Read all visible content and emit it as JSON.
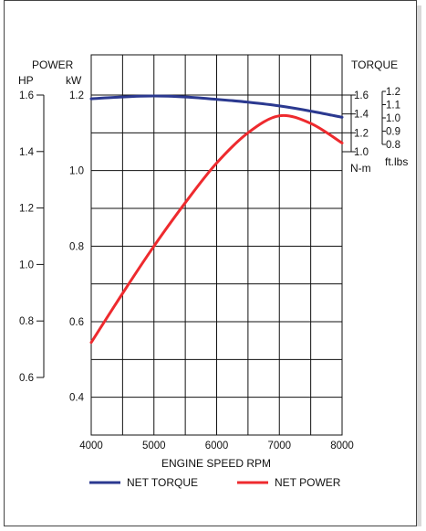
{
  "chart_data": {
    "type": "line",
    "title": "",
    "xlabel": "ENGINE SPEED RPM",
    "x_ticks": [
      "4000",
      "5000",
      "6000",
      "7000",
      "8000"
    ],
    "xlim": [
      4000,
      8000
    ],
    "grid": true,
    "legend_position": "bottom",
    "left_axis_title": "POWER",
    "hp_axis": {
      "unit": "HP",
      "ticks": [
        "1.6",
        "1.4",
        "1.2",
        "1.0",
        "0.8",
        "0.6"
      ],
      "ylim": [
        0.6,
        1.6
      ]
    },
    "kw_axis": {
      "unit": "kW",
      "ticks": [
        "1.2",
        "1.0",
        "0.8",
        "0.6",
        "0.4"
      ],
      "ylim": [
        0.3,
        1.2
      ]
    },
    "right_axis_title": "TORQUE",
    "nm_axis": {
      "unit": "N-m",
      "ticks": [
        "1.6",
        "1.4",
        "1.2",
        "1.0"
      ],
      "ylim": [
        1.0,
        1.6
      ]
    },
    "ftlbs_axis": {
      "unit": "ft.lbs",
      "ticks": [
        "1.2",
        "1.1",
        "1.0",
        "0.9",
        "0.8"
      ],
      "ylim": [
        0.8,
        1.2
      ]
    },
    "series": [
      {
        "name": "NET TORQUE",
        "color": "#2b3990",
        "axis": "nm",
        "x": [
          4000,
          4500,
          5000,
          5500,
          6000,
          6500,
          7000,
          7500,
          8000
        ],
        "values": [
          1.56,
          1.58,
          1.59,
          1.58,
          1.555,
          1.525,
          1.485,
          1.43,
          1.365
        ]
      },
      {
        "name": "NET POWER",
        "color": "#ee2a2e",
        "axis": "kw",
        "x": [
          4000,
          4500,
          5000,
          5500,
          6000,
          6500,
          7000,
          7500,
          8000
        ],
        "values": [
          0.545,
          0.675,
          0.8,
          0.915,
          1.02,
          1.1,
          1.145,
          1.125,
          1.073
        ]
      }
    ]
  }
}
